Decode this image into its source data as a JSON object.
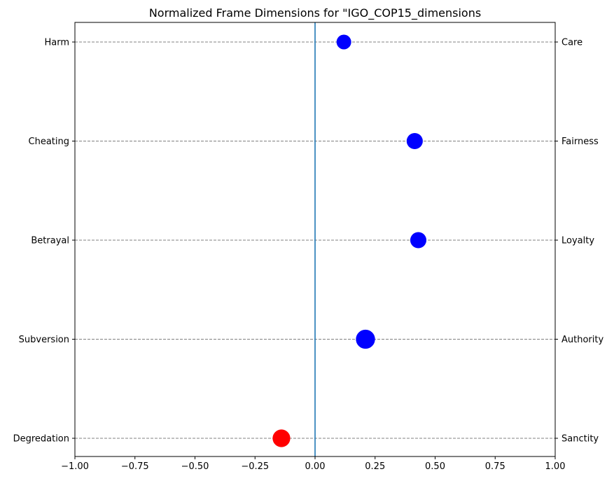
{
  "chart_data": {
    "type": "scatter",
    "title": "Normalized Frame Dimensions for \"IGO_COP15_dimensions",
    "xlim": [
      -1.0,
      1.0
    ],
    "x_ticks": [
      -1.0,
      -0.75,
      -0.5,
      -0.25,
      0.0,
      0.25,
      0.5,
      0.75,
      1.0
    ],
    "x_tick_labels": [
      "−1.00",
      "−0.75",
      "−0.50",
      "−0.25",
      "0.00",
      "0.25",
      "0.50",
      "0.75",
      "1.00"
    ],
    "left_labels": [
      "Harm",
      "Cheating",
      "Betrayal",
      "Subversion",
      "Degredation"
    ],
    "right_labels": [
      "Care",
      "Fairness",
      "Loyalty",
      "Authority",
      "Sanctity"
    ],
    "points": [
      {
        "left": "Harm",
        "right": "Care",
        "value": 0.12,
        "color": "#0000ff",
        "size": 1.0
      },
      {
        "left": "Cheating",
        "right": "Fairness",
        "value": 0.415,
        "color": "#0000ff",
        "size": 1.1
      },
      {
        "left": "Betrayal",
        "right": "Loyalty",
        "value": 0.43,
        "color": "#0000ff",
        "size": 1.1
      },
      {
        "left": "Subversion",
        "right": "Authority",
        "value": 0.21,
        "color": "#0000ff",
        "size": 1.3
      },
      {
        "left": "Degredation",
        "right": "Sanctity",
        "value": -0.14,
        "color": "#ff0000",
        "size": 1.2
      }
    ],
    "zero_line": {
      "x": 0.0,
      "color": "#1f77b4"
    },
    "gridlines": "horizontal dashed",
    "grid_color": "#808080"
  }
}
